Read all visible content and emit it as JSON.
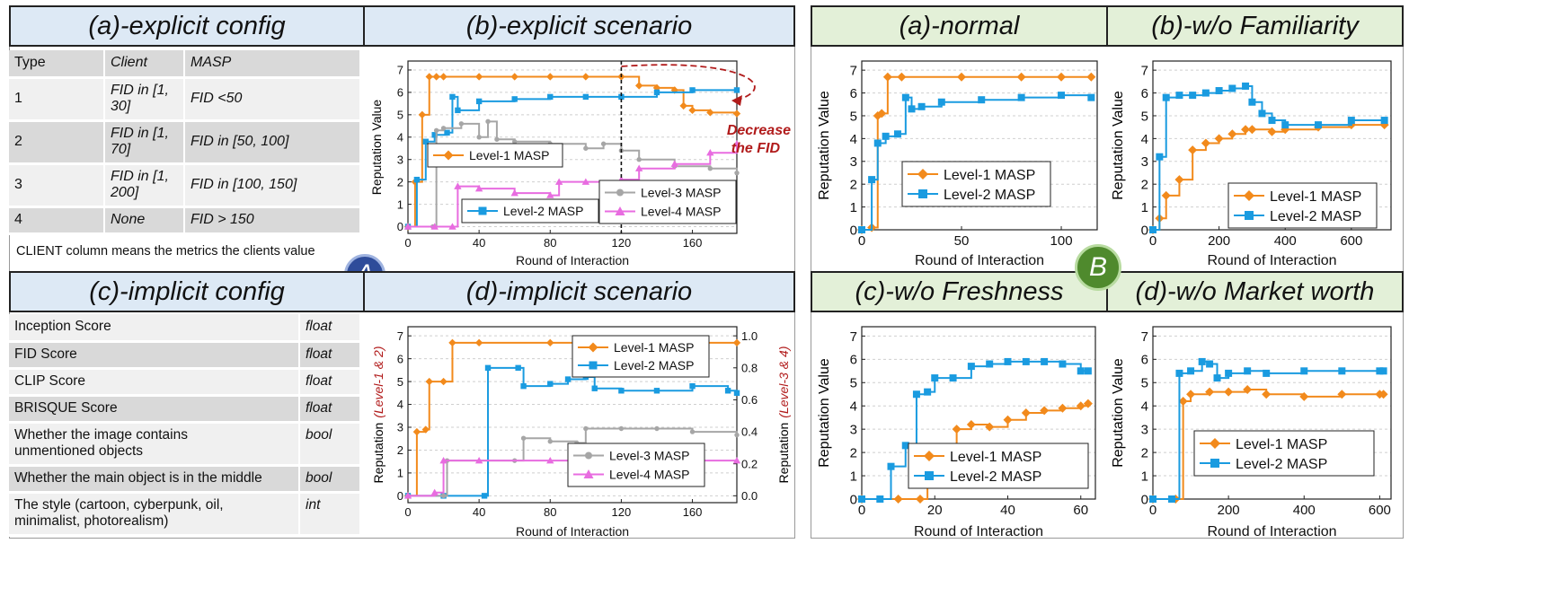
{
  "panelA": {
    "header_a": "(a)-explicit config",
    "header_b": "(b)-explicit scenario",
    "header_c": "(c)-implicit config",
    "header_d": "(d)-implicit scenario",
    "badge": "A",
    "table_a": {
      "columns": [
        "Type",
        "Client",
        "MASP"
      ],
      "rows": [
        {
          "type": "1",
          "client": "FID in [1, 30]",
          "client_l1": "FID in [1,",
          "client_l2": "30]",
          "masp": "FID <50"
        },
        {
          "type": "2",
          "client": "FID in [1, 70]",
          "client_l1": "FID in [1,",
          "client_l2": "70]",
          "masp": "FID in [50, 100]"
        },
        {
          "type": "3",
          "client": "FID in [1, 200]",
          "client_l1": "FID in [1,",
          "client_l2": "200]",
          "masp": "FID in [100, 150]"
        },
        {
          "type": "4",
          "client": "None",
          "client_l1": "None",
          "client_l2": "",
          "masp": "FID > 150"
        }
      ],
      "note": "CLIENT column means the metrics the clients value"
    },
    "table_c": {
      "rows": [
        {
          "metric": "Inception Score",
          "metric_l2": "",
          "type": "float"
        },
        {
          "metric": "FID Score",
          "metric_l2": "",
          "type": "float"
        },
        {
          "metric": "CLIP Score",
          "metric_l2": "",
          "type": "float"
        },
        {
          "metric": "BRISQUE Score",
          "metric_l2": "",
          "type": "float"
        },
        {
          "metric": "Whether the image contains",
          "metric_l2": "unmentioned objects",
          "type": "bool"
        },
        {
          "metric": "Whether the main object is in the middle",
          "metric_l2": "",
          "type": "bool"
        },
        {
          "metric": "The style (cartoon, cyberpunk, oil,",
          "metric_l2": "minimalist, photorealism)",
          "type": "int"
        }
      ]
    }
  },
  "panelB": {
    "header_a": "(a)-normal",
    "header_b": "(b)-w/o Familiarity",
    "header_c": "(c)-w/o Freshness",
    "header_d": "(d)-w/o Market worth",
    "badge": "B"
  },
  "colors": {
    "level1": "#f28a1c",
    "level2": "#1a9be0",
    "level3": "#a6a6a6",
    "level4": "#e86ce0",
    "annotation": "#b11b1b",
    "badgeA": "#2e4c9a",
    "badgeB": "#4f8a2d"
  },
  "chart_data": [
    {
      "id": "explicit-scenario",
      "type": "line",
      "xlabel": "Round of Interaction",
      "ylabel": "Reputation Value",
      "xlim": [
        0,
        185
      ],
      "ylim": [
        -0.3,
        7.4
      ],
      "xticks": [
        0,
        40,
        80,
        120,
        160
      ],
      "yticks": [
        0,
        1,
        2,
        3,
        4,
        5,
        6,
        7
      ],
      "annotation": "Decrease the FID",
      "annotation_l1": "Decrease",
      "annotation_l2": "the FID",
      "vline_x": 120,
      "series": [
        {
          "name": "Level-1 MASP",
          "color_key": "level1",
          "marker": "diamond",
          "x": [
            0,
            4,
            8,
            12,
            16,
            20,
            40,
            60,
            80,
            100,
            120,
            130,
            140,
            150,
            155,
            160,
            170,
            185
          ],
          "y": [
            0,
            2.0,
            5.0,
            6.7,
            6.7,
            6.7,
            6.7,
            6.7,
            6.7,
            6.7,
            6.7,
            6.3,
            6.2,
            6.1,
            5.4,
            5.2,
            5.1,
            5.05
          ]
        },
        {
          "name": "Level-2 MASP",
          "color_key": "level2",
          "marker": "square",
          "x": [
            0,
            5,
            10,
            15,
            22,
            25,
            28,
            40,
            60,
            80,
            100,
            120,
            140,
            160,
            185
          ],
          "y": [
            0,
            2.1,
            3.8,
            4.1,
            4.2,
            5.8,
            5.2,
            5.6,
            5.7,
            5.8,
            5.8,
            5.8,
            6.0,
            6.1,
            6.1
          ]
        },
        {
          "name": "Level-3 MASP",
          "color_key": "level3",
          "marker": "circle",
          "x": [
            0,
            14,
            16,
            20,
            30,
            40,
            45,
            50,
            60,
            80,
            100,
            110,
            120,
            130,
            150,
            170,
            185
          ],
          "y": [
            0,
            0,
            4.3,
            4.4,
            4.6,
            4.0,
            4.7,
            3.9,
            3.8,
            3.7,
            3.5,
            3.7,
            3.4,
            3.0,
            2.7,
            2.6,
            2.4
          ]
        },
        {
          "name": "Level-4 MASP",
          "color_key": "level4",
          "marker": "triangle",
          "x": [
            0,
            15,
            25,
            28,
            40,
            60,
            80,
            85,
            100,
            120,
            130,
            150,
            170,
            185
          ],
          "y": [
            0,
            0,
            0,
            1.8,
            1.7,
            1.5,
            1.4,
            2.0,
            2.0,
            2.1,
            2.6,
            2.8,
            3.3,
            3.7
          ]
        }
      ]
    },
    {
      "id": "implicit-scenario",
      "type": "line",
      "xlabel": "Round of Interaction",
      "ylabel": "Reputation",
      "ylabel_left_extra": "(Level-1 & 2)",
      "ylabel_right": "Reputation",
      "ylabel_right_extra": "(Level-3 & 4)",
      "xlim": [
        0,
        185
      ],
      "ylim": [
        -0.3,
        7.4
      ],
      "y2lim": [
        -0.043,
        1.057
      ],
      "xticks": [
        0,
        40,
        80,
        120,
        160
      ],
      "yticks": [
        0,
        1,
        2,
        3,
        4,
        5,
        6,
        7
      ],
      "y2ticks": [
        0.0,
        0.2,
        0.4,
        0.6,
        0.8,
        1.0
      ],
      "series": [
        {
          "name": "Level-1 MASP",
          "axis": "left",
          "color_key": "level1",
          "marker": "diamond",
          "x": [
            0,
            5,
            10,
            12,
            20,
            25,
            40,
            80,
            120,
            160,
            185
          ],
          "y": [
            0,
            2.8,
            2.9,
            5.0,
            5.0,
            6.7,
            6.7,
            6.7,
            6.7,
            6.7,
            6.7
          ]
        },
        {
          "name": "Level-2 MASP",
          "axis": "left",
          "color_key": "level2",
          "marker": "square",
          "x": [
            0,
            20,
            43,
            45,
            62,
            65,
            80,
            90,
            100,
            105,
            120,
            140,
            160,
            180,
            185
          ],
          "y": [
            0,
            0,
            0,
            5.6,
            5.6,
            4.8,
            4.9,
            5.1,
            5.2,
            4.7,
            4.6,
            4.6,
            4.8,
            4.6,
            4.5
          ]
        },
        {
          "name": "Level-3 MASP",
          "axis": "right",
          "color_key": "level3",
          "marker": "circle",
          "x": [
            0,
            20,
            22,
            60,
            65,
            80,
            95,
            100,
            120,
            140,
            160,
            185
          ],
          "y": [
            0,
            0,
            0.22,
            0.22,
            0.36,
            0.34,
            0.33,
            0.42,
            0.42,
            0.42,
            0.4,
            0.38
          ]
        },
        {
          "name": "Level-4 MASP",
          "axis": "right",
          "color_key": "level4",
          "marker": "triangle",
          "x": [
            0,
            15,
            20,
            40,
            80,
            120,
            160,
            185
          ],
          "y": [
            0,
            0.02,
            0.22,
            0.22,
            0.22,
            0.22,
            0.22,
            0.22
          ]
        }
      ]
    },
    {
      "id": "normal",
      "type": "line",
      "xlabel": "Round of Interaction",
      "ylabel": "Reputation Value",
      "xlim": [
        0,
        118
      ],
      "ylim": [
        0,
        7.4
      ],
      "xticks": [
        0,
        50,
        100
      ],
      "yticks": [
        0,
        1,
        2,
        3,
        4,
        5,
        6,
        7
      ],
      "series": [
        {
          "name": "Level-1 MASP",
          "color_key": "level1",
          "marker": "diamond",
          "x": [
            0,
            5,
            8,
            10,
            13,
            20,
            50,
            80,
            100,
            115
          ],
          "y": [
            0,
            0.1,
            5.0,
            5.1,
            6.7,
            6.7,
            6.7,
            6.7,
            6.7,
            6.7
          ]
        },
        {
          "name": "Level-2 MASP",
          "color_key": "level2",
          "marker": "square",
          "x": [
            0,
            5,
            8,
            12,
            18,
            22,
            25,
            30,
            40,
            60,
            80,
            100,
            115
          ],
          "y": [
            0,
            2.2,
            3.8,
            4.1,
            4.2,
            5.8,
            5.3,
            5.4,
            5.6,
            5.7,
            5.8,
            5.9,
            5.8
          ]
        }
      ]
    },
    {
      "id": "wo-familiarity",
      "type": "line",
      "xlabel": "Round of Interaction",
      "ylabel": "Reputation Value",
      "xlim": [
        0,
        720
      ],
      "ylim": [
        0,
        7.4
      ],
      "xticks": [
        0,
        200,
        400,
        600
      ],
      "yticks": [
        0,
        1,
        2,
        3,
        4,
        5,
        6,
        7
      ],
      "series": [
        {
          "name": "Level-1 MASP",
          "color_key": "level1",
          "marker": "diamond",
          "x": [
            0,
            20,
            40,
            80,
            120,
            160,
            200,
            240,
            280,
            300,
            360,
            400,
            500,
            600,
            700
          ],
          "y": [
            0,
            0.5,
            1.5,
            2.2,
            3.5,
            3.8,
            4.0,
            4.2,
            4.4,
            4.4,
            4.3,
            4.4,
            4.5,
            4.6,
            4.6
          ]
        },
        {
          "name": "Level-2 MASP",
          "color_key": "level2",
          "marker": "square",
          "x": [
            0,
            20,
            40,
            80,
            120,
            160,
            200,
            240,
            280,
            300,
            330,
            360,
            400,
            500,
            600,
            700
          ],
          "y": [
            0,
            3.2,
            5.8,
            5.9,
            5.9,
            6.0,
            6.1,
            6.2,
            6.3,
            5.6,
            5.1,
            4.8,
            4.6,
            4.6,
            4.8,
            4.8
          ]
        }
      ]
    },
    {
      "id": "wo-freshness",
      "type": "line",
      "xlabel": "Round of Interaction",
      "ylabel": "Reputation Value",
      "xlim": [
        0,
        64
      ],
      "ylim": [
        0,
        7.4
      ],
      "xticks": [
        0,
        20,
        40,
        60
      ],
      "yticks": [
        0,
        1,
        2,
        3,
        4,
        5,
        6,
        7
      ],
      "series": [
        {
          "name": "Level-1 MASP",
          "color_key": "level1",
          "marker": "diamond",
          "x": [
            0,
            10,
            16,
            18,
            22,
            26,
            30,
            35,
            40,
            45,
            50,
            55,
            60,
            62
          ],
          "y": [
            0,
            0,
            0,
            2.1,
            2.2,
            3.0,
            3.2,
            3.1,
            3.4,
            3.7,
            3.8,
            3.9,
            4.0,
            4.1
          ]
        },
        {
          "name": "Level-2 MASP",
          "color_key": "level2",
          "marker": "square",
          "x": [
            0,
            5,
            8,
            12,
            15,
            18,
            20,
            25,
            30,
            35,
            40,
            45,
            50,
            55,
            60,
            62
          ],
          "y": [
            0,
            0,
            1.4,
            2.3,
            4.5,
            4.6,
            5.2,
            5.2,
            5.7,
            5.8,
            5.9,
            5.9,
            5.9,
            5.8,
            5.5,
            5.5
          ]
        }
      ]
    },
    {
      "id": "wo-market-worth",
      "type": "line",
      "xlabel": "Round of Interaction",
      "ylabel": "Reputation Value",
      "xlim": [
        0,
        630
      ],
      "ylim": [
        0,
        7.4
      ],
      "xticks": [
        0,
        200,
        400,
        600
      ],
      "yticks": [
        0,
        1,
        2,
        3,
        4,
        5,
        6,
        7
      ],
      "series": [
        {
          "name": "Level-1 MASP",
          "color_key": "level1",
          "marker": "diamond",
          "x": [
            0,
            60,
            80,
            100,
            150,
            200,
            250,
            300,
            400,
            500,
            600,
            610
          ],
          "y": [
            0,
            0,
            4.2,
            4.5,
            4.6,
            4.6,
            4.7,
            4.5,
            4.4,
            4.5,
            4.5,
            4.5
          ]
        },
        {
          "name": "Level-2 MASP",
          "color_key": "level2",
          "marker": "square",
          "x": [
            0,
            50,
            70,
            100,
            130,
            150,
            170,
            200,
            250,
            300,
            400,
            500,
            600,
            610
          ],
          "y": [
            0,
            0,
            5.4,
            5.5,
            5.9,
            5.8,
            5.2,
            5.4,
            5.5,
            5.4,
            5.5,
            5.5,
            5.5,
            5.5
          ]
        }
      ]
    }
  ]
}
